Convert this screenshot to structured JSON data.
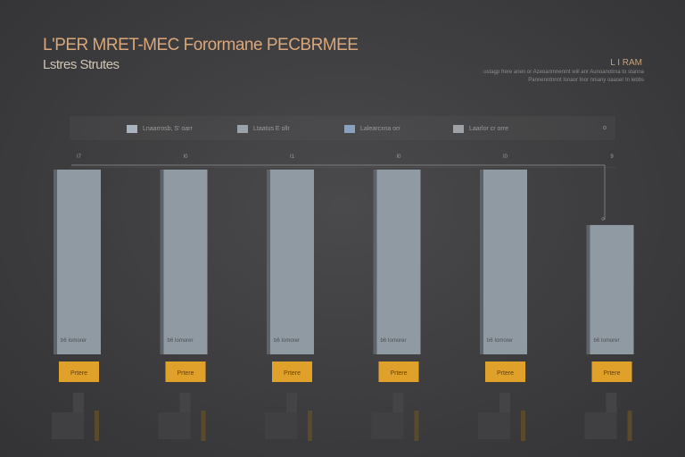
{
  "header": {
    "title": "L'PER MRET-MEC Forormane PECBRMEE",
    "subtitle": "Lstres Strutes",
    "corner_label": "L I RAM",
    "note_lines": [
      "ustagp frere anen or Azeoanmnenmt wiil anr Aunoanotrna to stanna",
      "Pannenntnnnt Isnaor Inor nniany oaaser In lebbs"
    ]
  },
  "legend": {
    "items": [
      {
        "label": "Lnaarrosb, S' oarr",
        "color": "#a9b3bd"
      },
      {
        "label": "Ltaatus  E  ollr",
        "color": "#9aa3ab"
      },
      {
        "label": "Lalearcxna  orr",
        "color": "#8aa2c0"
      },
      {
        "label": "Laarlor  cr  orre",
        "color": "#9ea2a6"
      }
    ],
    "extra": "o"
  },
  "colors": {
    "bar": "#8f9aa3",
    "bar_shadow": "#5e6369",
    "badge": "#e0a12a",
    "gridline": "#7c7c80"
  },
  "chart_data": {
    "type": "bar",
    "title": "L'PER MRET-MEC Forormane PECBRMEE",
    "subtitle": "Lstres Strutes",
    "categories": [
      "",
      "",
      "",
      "",
      "",
      ""
    ],
    "top_labels": [
      "I7",
      "I0",
      "I1",
      "I0",
      "I0",
      "9"
    ],
    "values": [
      100,
      100,
      100,
      100,
      100,
      70
    ],
    "bar_text": [
      "b6 Iomorer",
      "b6 Iomorer",
      "b6 Iomorer",
      "b6 Iomorer",
      "b6 Iomorer",
      "b6 Iomorer"
    ],
    "badge_labels": [
      "Prtere",
      "Prtere",
      "Prtere",
      "Prtere",
      "Prtere",
      "Prtere"
    ],
    "annotation": "o",
    "ylim": [
      0,
      100
    ],
    "grid": false,
    "legend_position": "top"
  }
}
